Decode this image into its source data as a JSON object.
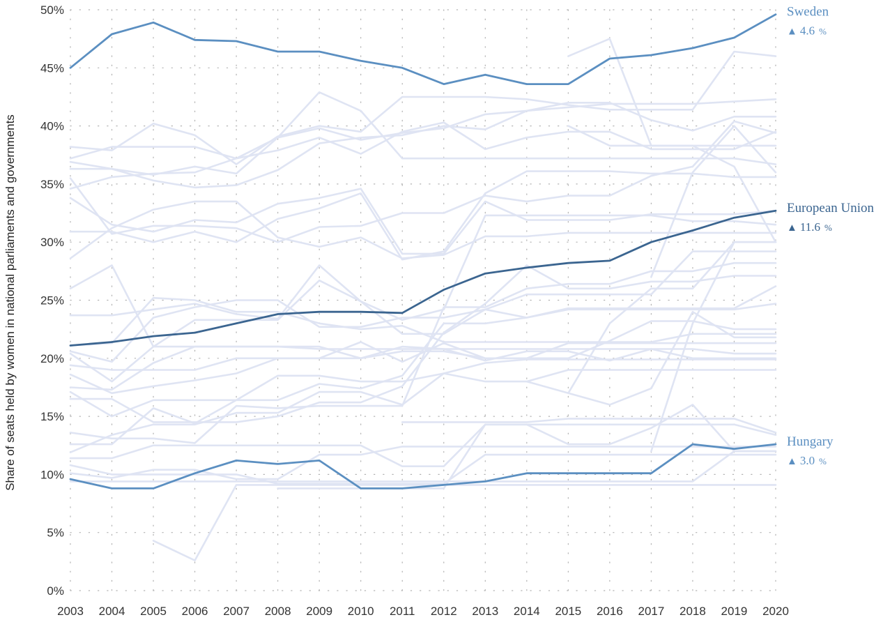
{
  "chart_data": {
    "type": "line",
    "title": "",
    "xlabel": "",
    "ylabel": "Share of seats held by women in national parliaments and governments",
    "x": [
      2003,
      2004,
      2005,
      2006,
      2007,
      2008,
      2009,
      2010,
      2011,
      2012,
      2013,
      2014,
      2015,
      2016,
      2017,
      2018,
      2019,
      2020
    ],
    "x_tick_labels": [
      "2003",
      "2004",
      "2005",
      "2006",
      "2007",
      "2008",
      "2009",
      "2010",
      "2011",
      "2012",
      "2013",
      "2014",
      "2015",
      "2016",
      "2017",
      "2018",
      "2019",
      "2020"
    ],
    "y_tick_labels": [
      "0%",
      "5%",
      "10%",
      "15%",
      "20%",
      "25%",
      "30%",
      "35%",
      "40%",
      "45%",
      "50%"
    ],
    "ylim": [
      0,
      50
    ],
    "grid": true,
    "legend": "labels at right end of lines",
    "colors": {
      "highlight_light": "#5b8fc1",
      "highlight_dark": "#3b6590",
      "background_lines": "#dfe4f3"
    },
    "highlighted": [
      {
        "name": "Sweden",
        "change": "4.6",
        "change_arrow": "▲",
        "unit": "%",
        "color": "#5b8fc1",
        "values": [
          45.0,
          47.9,
          48.9,
          47.4,
          47.3,
          46.4,
          46.4,
          45.6,
          45.0,
          43.6,
          44.4,
          43.6,
          43.6,
          45.8,
          46.1,
          46.7,
          47.6,
          49.6
        ]
      },
      {
        "name": "European Union",
        "change": "11.6",
        "change_arrow": "▲",
        "unit": "%",
        "color": "#3b6590",
        "values": [
          21.1,
          21.4,
          21.9,
          22.2,
          23.0,
          23.8,
          24.0,
          24.0,
          23.9,
          25.9,
          27.3,
          27.8,
          28.2,
          28.4,
          30.0,
          31.0,
          32.1,
          32.7
        ]
      },
      {
        "name": "Hungary",
        "change": "3.0",
        "change_arrow": "▲",
        "unit": "%",
        "color": "#5b8fc1",
        "values": [
          9.6,
          8.8,
          8.8,
          10.1,
          11.2,
          10.9,
          11.2,
          8.8,
          8.8,
          9.1,
          9.4,
          10.1,
          10.1,
          10.1,
          10.1,
          12.6,
          12.2,
          12.6
        ]
      }
    ],
    "other_series_values": [
      [
        38.2,
        37.9,
        40.2,
        39.2,
        36.7,
        39.1,
        40.0,
        39.5,
        42.5,
        42.5,
        42.5,
        42.3,
        41.8,
        41.4,
        41.4,
        41.4,
        46.4,
        46.0
      ],
      [
        37.2,
        38.2,
        38.2,
        38.2,
        37.2,
        39.0,
        39.8,
        38.8,
        39.4,
        39.8,
        41.0,
        41.3,
        41.6,
        41.9,
        41.9,
        41.9,
        42.1,
        42.3
      ],
      [
        36.9,
        36.3,
        35.3,
        34.7,
        34.9,
        36.2,
        38.5,
        39.0,
        39.2,
        40.0,
        39.7,
        41.3,
        42.0,
        42.0,
        40.5,
        39.6,
        40.8,
        40.8
      ],
      [
        36.3,
        36.3,
        35.8,
        36.5,
        35.9,
        39.0,
        42.9,
        41.3,
        37.2,
        37.2,
        37.2,
        37.2,
        37.2,
        37.2,
        37.2,
        37.2,
        37.2,
        36.7
      ],
      [
        34.6,
        35.6,
        35.9,
        36.0,
        37.2,
        37.9,
        39.0,
        37.6,
        39.5,
        40.3,
        38.0,
        39.0,
        39.5,
        39.5,
        38.0,
        38.0,
        38.0,
        39.5
      ],
      [
        35.5,
        30.7,
        31.4,
        31.4,
        31.2,
        30.0,
        31.3,
        31.4,
        32.5,
        32.5,
        34.0,
        33.5,
        34.0,
        34.0,
        35.7,
        36.5,
        40.4,
        39.4
      ],
      [
        33.8,
        31.5,
        30.9,
        31.9,
        31.7,
        33.3,
        33.8,
        34.6,
        29.0,
        29.0,
        33.5,
        31.9,
        31.9,
        31.9,
        32.4,
        32.4,
        32.4,
        32.7
      ],
      [
        30.9,
        30.9,
        30.0,
        30.9,
        30.0,
        32.0,
        32.9,
        34.2,
        28.5,
        29.2,
        34.2,
        36.1,
        36.1,
        36.1,
        35.9,
        35.9,
        35.6,
        35.6
      ],
      [
        28.6,
        31.2,
        32.8,
        33.5,
        33.5,
        30.4,
        29.6,
        30.4,
        28.6,
        28.9,
        30.5,
        30.5,
        30.8,
        30.8,
        30.8,
        30.8,
        30.8,
        30.8
      ],
      [
        26.0,
        28.0,
        21.0,
        23.3,
        23.3,
        23.3,
        26.7,
        24.9,
        23.3,
        24.2,
        32.3,
        32.3,
        32.3,
        32.3,
        32.3,
        31.8,
        31.8,
        31.5
      ],
      [
        23.7,
        23.7,
        24.2,
        24.7,
        23.8,
        23.4,
        28.0,
        24.9,
        22.1,
        22.1,
        24.2,
        25.5,
        25.5,
        25.5,
        25.5,
        29.2,
        29.2,
        29.2
      ],
      [
        21.1,
        21.3,
        25.2,
        25.0,
        24.0,
        24.0,
        23.0,
        22.5,
        22.8,
        21.4,
        21.4,
        21.4,
        21.4,
        21.4,
        21.4,
        22.1,
        22.1,
        22.1
      ],
      [
        20.6,
        19.7,
        23.5,
        24.4,
        25.0,
        25.0,
        22.7,
        22.7,
        23.5,
        23.5,
        24.2,
        23.5,
        24.2,
        24.2,
        24.2,
        24.2,
        24.2,
        24.7
      ],
      [
        20.4,
        18.0,
        21.0,
        21.0,
        21.0,
        21.0,
        20.8,
        20.8,
        20.8,
        20.8,
        20.8,
        20.8,
        20.8,
        20.8,
        20.8,
        20.8,
        20.4,
        20.4
      ],
      [
        19.4,
        19.0,
        19.0,
        19.0,
        20.0,
        20.0,
        20.0,
        21.4,
        19.7,
        21.3,
        20.0,
        20.0,
        21.3,
        21.3,
        21.3,
        21.3,
        21.3,
        21.3
      ],
      [
        18.6,
        17.0,
        17.6,
        18.1,
        18.7,
        20.0,
        20.0,
        20.0,
        20.6,
        20.6,
        20.0,
        20.0,
        20.0,
        21.5,
        23.2,
        23.2,
        22.5,
        22.5
      ],
      [
        17.5,
        17.3,
        19.6,
        21.0,
        21.0,
        21.0,
        21.0,
        20.0,
        21.0,
        20.8,
        19.8,
        20.6,
        20.6,
        19.8,
        20.8,
        20.0,
        20.0,
        20.0
      ],
      [
        17.1,
        15.0,
        16.4,
        16.4,
        16.4,
        16.4,
        17.8,
        17.4,
        18.5,
        23.0,
        23.0,
        23.5,
        24.3,
        24.3,
        24.3,
        24.3,
        24.3,
        26.2
      ],
      [
        16.5,
        16.5,
        14.5,
        14.5,
        14.5,
        15.0,
        16.2,
        16.2,
        17.6,
        22.2,
        24.7,
        28.0,
        26.0,
        26.0,
        26.6,
        26.6,
        27.1,
        27.1
      ],
      [
        13.6,
        13.1,
        13.1,
        12.7,
        15.9,
        15.7,
        15.9,
        15.9,
        15.9,
        24.4,
        24.4,
        26.0,
        26.4,
        26.4,
        27.5,
        27.5,
        28.2,
        28.2
      ],
      [
        12.6,
        12.6,
        15.7,
        14.4,
        16.4,
        18.5,
        18.5,
        18.0,
        18.0,
        18.7,
        18.0,
        18.0,
        19.0,
        19.0,
        19.0,
        19.0,
        19.0,
        19.0
      ],
      [
        11.9,
        13.4,
        14.3,
        14.3,
        15.3,
        15.3,
        17.1,
        17.1,
        16.0,
        18.7,
        19.6,
        19.9,
        19.9,
        19.9,
        19.9,
        19.9,
        19.9,
        19.9
      ],
      [
        11.4,
        11.4,
        12.5,
        12.5,
        12.5,
        12.5,
        12.5,
        12.5,
        10.7,
        10.7,
        14.3,
        14.3,
        14.3,
        14.3,
        14.3,
        14.3,
        14.3,
        13.4
      ],
      [
        10.8,
        10.0,
        10.0,
        10.0,
        10.0,
        9.2,
        9.2,
        9.2,
        9.2,
        9.2,
        11.7,
        11.7,
        11.7,
        11.7,
        11.7,
        11.7,
        11.7,
        11.7
      ],
      [
        10.1,
        9.7,
        10.4,
        10.4,
        9.6,
        9.6,
        11.7,
        11.7,
        12.4,
        12.4,
        12.4,
        12.4,
        12.4,
        12.4,
        12.4,
        12.4,
        12.4,
        12.4
      ],
      [
        9.4,
        9.4,
        9.4,
        9.4,
        9.4,
        9.4,
        9.4,
        9.4,
        9.4,
        9.4,
        9.4,
        9.4,
        9.4,
        9.4,
        9.4,
        9.4,
        12.0,
        12.0
      ],
      [
        null,
        null,
        4.3,
        2.6,
        9.1,
        9.1,
        9.1,
        9.1,
        9.1,
        9.1,
        9.1,
        9.1,
        9.1,
        9.1,
        9.1,
        9.1,
        9.1,
        9.1
      ],
      [
        null,
        null,
        null,
        null,
        null,
        8.8,
        8.8,
        8.8,
        8.8,
        8.8,
        14.3,
        14.3,
        12.6,
        12.6,
        14.0,
        16.0,
        12.0,
        12.0
      ],
      [
        null,
        null,
        null,
        null,
        null,
        null,
        null,
        null,
        14.5,
        14.5,
        14.5,
        14.5,
        14.8,
        14.8,
        14.8,
        14.8,
        14.8,
        13.6
      ],
      [
        null,
        null,
        null,
        null,
        null,
        null,
        null,
        null,
        null,
        null,
        null,
        18.0,
        17.0,
        16.0,
        17.4,
        24.0,
        21.8,
        21.8
      ],
      [
        null,
        null,
        null,
        null,
        null,
        null,
        null,
        null,
        null,
        null,
        null,
        null,
        46.0,
        47.5,
        38.3,
        38.3,
        38.3,
        38.3
      ],
      [
        null,
        null,
        null,
        null,
        null,
        null,
        null,
        null,
        null,
        null,
        null,
        null,
        40.0,
        38.3,
        38.3,
        38.3,
        36.5,
        30.0
      ],
      [
        null,
        null,
        null,
        null,
        null,
        null,
        null,
        null,
        null,
        null,
        null,
        null,
        17.0,
        23.0,
        26.0,
        26.0,
        30.0,
        30.0
      ],
      [
        null,
        null,
        null,
        null,
        null,
        null,
        null,
        null,
        null,
        null,
        null,
        null,
        null,
        null,
        12.0,
        23.0,
        30.0,
        30.0
      ],
      [
        null,
        null,
        null,
        null,
        null,
        null,
        null,
        null,
        null,
        null,
        null,
        null,
        null,
        null,
        27.0,
        36.0,
        40.0,
        36.0
      ]
    ]
  }
}
